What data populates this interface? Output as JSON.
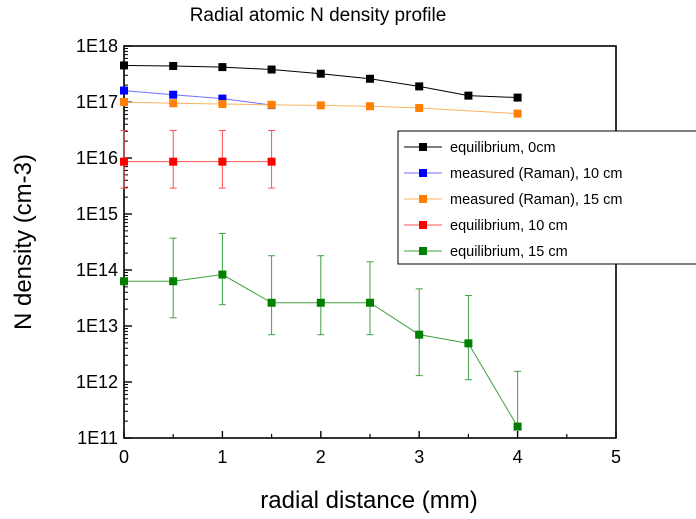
{
  "chart_data": {
    "type": "scatter",
    "title": "Radial atomic N density profile",
    "xlabel": "radial distance (mm)",
    "ylabel": "N density (cm-3)",
    "xlim": [
      0,
      5
    ],
    "ylim": [
      100000000000.0,
      1e+18
    ],
    "yscale": "log",
    "grid": false,
    "legend_position": "right",
    "x_ticks": [
      {
        "value": 0,
        "label": "0"
      },
      {
        "value": 1,
        "label": "1"
      },
      {
        "value": 2,
        "label": "2"
      },
      {
        "value": 3,
        "label": "3"
      },
      {
        "value": 4,
        "label": "4"
      },
      {
        "value": 5,
        "label": "5"
      }
    ],
    "y_ticks": [
      {
        "value": 100000000000.0,
        "label": "1E11"
      },
      {
        "value": 1000000000000.0,
        "label": "1E12"
      },
      {
        "value": 10000000000000.0,
        "label": "1E13"
      },
      {
        "value": 100000000000000.0,
        "label": "1E14"
      },
      {
        "value": 1000000000000000.0,
        "label": "1E15"
      },
      {
        "value": 1e+16,
        "label": "1E16"
      },
      {
        "value": 1e+17,
        "label": "1E17"
      },
      {
        "value": 1e+18,
        "label": "1E18"
      }
    ],
    "series": [
      {
        "name": "equilibrium, 0cm",
        "color": "#000000",
        "line_color": "#000000",
        "x": [
          0,
          0.5,
          1,
          1.5,
          2,
          2.5,
          3,
          3.5,
          4
        ],
        "y": [
          4.5e+17,
          4.4e+17,
          4.2e+17,
          3.8e+17,
          3.2e+17,
          2.6e+17,
          1.9e+17,
          1.3e+17,
          1.2e+17
        ]
      },
      {
        "name": "measured (Raman), 10 cm",
        "color": "#0000ff",
        "line_color": "#6f6fff",
        "x": [
          0,
          0.5,
          1,
          1.5
        ],
        "y": [
          1.6e+17,
          1.35e+17,
          1.15e+17,
          8.8e+16
        ]
      },
      {
        "name": "measured (Raman), 15 cm",
        "color": "#ff8000",
        "line_color": "#ffb060",
        "x": [
          0,
          0.5,
          1,
          1.5,
          2,
          2.5,
          3,
          4
        ],
        "y": [
          1e+17,
          9.5e+16,
          9.2e+16,
          8.9e+16,
          8.7e+16,
          8.4e+16,
          7.8e+16,
          6.2e+16
        ]
      },
      {
        "name": "equilibrium, 10 cm",
        "color": "#ff0000",
        "line_color": "#ff5050",
        "x": [
          0,
          0.5,
          1,
          1.5
        ],
        "y": [
          8600000000000000.0,
          8600000000000000.0,
          8600000000000000.0,
          8600000000000000.0
        ],
        "err_low": [
          2900000000000000.0,
          2900000000000000.0,
          2900000000000000.0,
          2900000000000000.0
        ],
        "err_high": [
          3.1e+16,
          3.1e+16,
          3.1e+16,
          3.1e+16
        ]
      },
      {
        "name": "equilibrium, 15 cm",
        "color": "#008000",
        "line_color": "#40a040",
        "x": [
          0,
          0.5,
          1,
          1.5,
          2,
          2.5,
          3,
          3.5,
          4
        ],
        "y": [
          63000000000000.0,
          63000000000000.0,
          83000000000000.0,
          26000000000000.0,
          26000000000000.0,
          26000000000000.0,
          7000000000000.0,
          4900000000000.0,
          160000000000.0
        ],
        "err_low": [
          null,
          14000000000000.0,
          24000000000000.0,
          7000000000000.0,
          7000000000000.0,
          7000000000000.0,
          1300000000000.0,
          1100000000000.0,
          null
        ],
        "err_high": [
          null,
          370000000000000.0,
          450000000000000.0,
          180000000000000.0,
          180000000000000.0,
          140000000000000.0,
          46000000000000.0,
          35000000000000.0,
          1550000000000.0
        ]
      }
    ]
  }
}
